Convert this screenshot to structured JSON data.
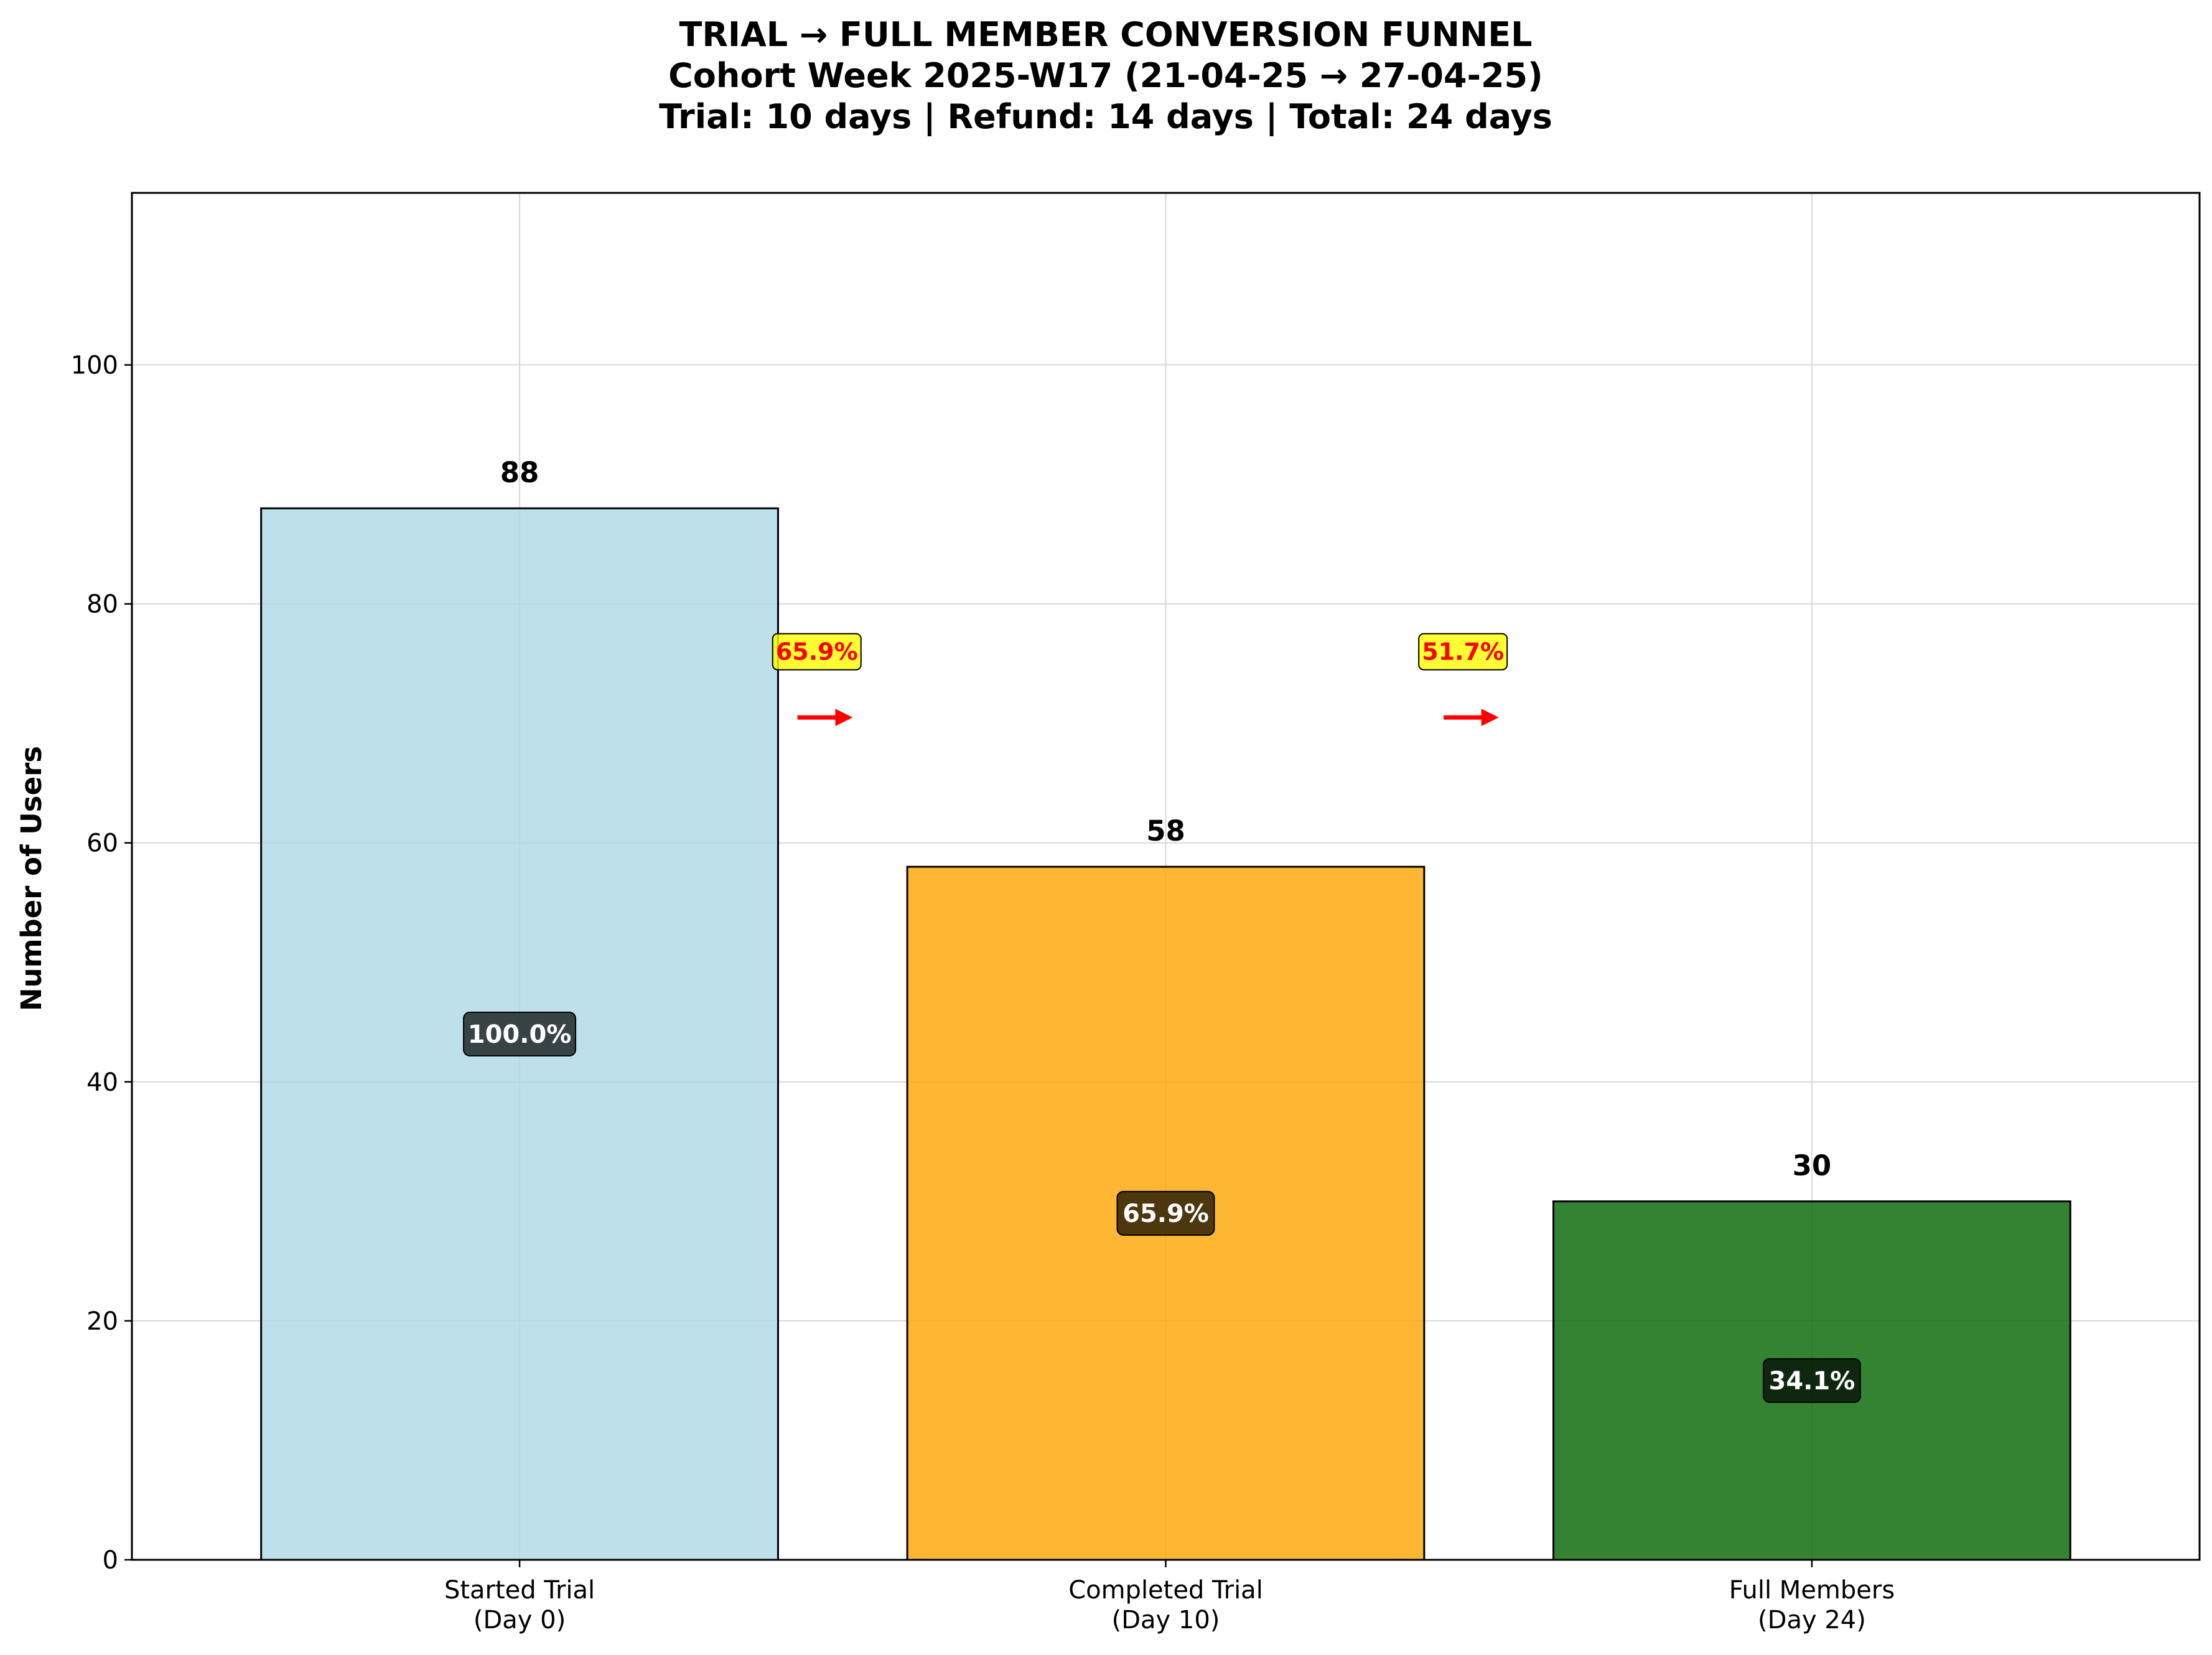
{
  "chart_data": {
    "type": "bar",
    "title_lines": [
      "TRIAL → FULL MEMBER CONVERSION FUNNEL",
      "Cohort Week 2025-W17 (21-04-25 → 27-04-25)",
      "Trial: 10 days | Refund: 14 days | Total: 24 days"
    ],
    "ylabel": "Number of Users",
    "xlabel": "",
    "ylim": [
      0,
      114.4
    ],
    "yticks": [
      0,
      20,
      40,
      60,
      80,
      100
    ],
    "grid": true,
    "categories": [
      [
        "Started Trial",
        "(Day 0)"
      ],
      [
        "Completed Trial",
        "(Day 10)"
      ],
      [
        "Full Members",
        "(Day 24)"
      ]
    ],
    "values": [
      88,
      58,
      30
    ],
    "value_labels": [
      "88",
      "58",
      "30"
    ],
    "percent_of_start": [
      "100.0%",
      "65.9%",
      "34.1%"
    ],
    "bar_colors": [
      "#ADD8E6",
      "#FFA500",
      "#006400"
    ],
    "bar_opacity": 0.8,
    "percent_box_color": "#000000",
    "step_conversions": [
      {
        "label": "65.9%",
        "from": 0,
        "to": 1
      },
      {
        "label": "51.7%",
        "from": 1,
        "to": 2
      }
    ],
    "conversion_label_color": "#FF0000",
    "conversion_box_color": "#FFFF00",
    "arrow_color": "#FF0000"
  }
}
